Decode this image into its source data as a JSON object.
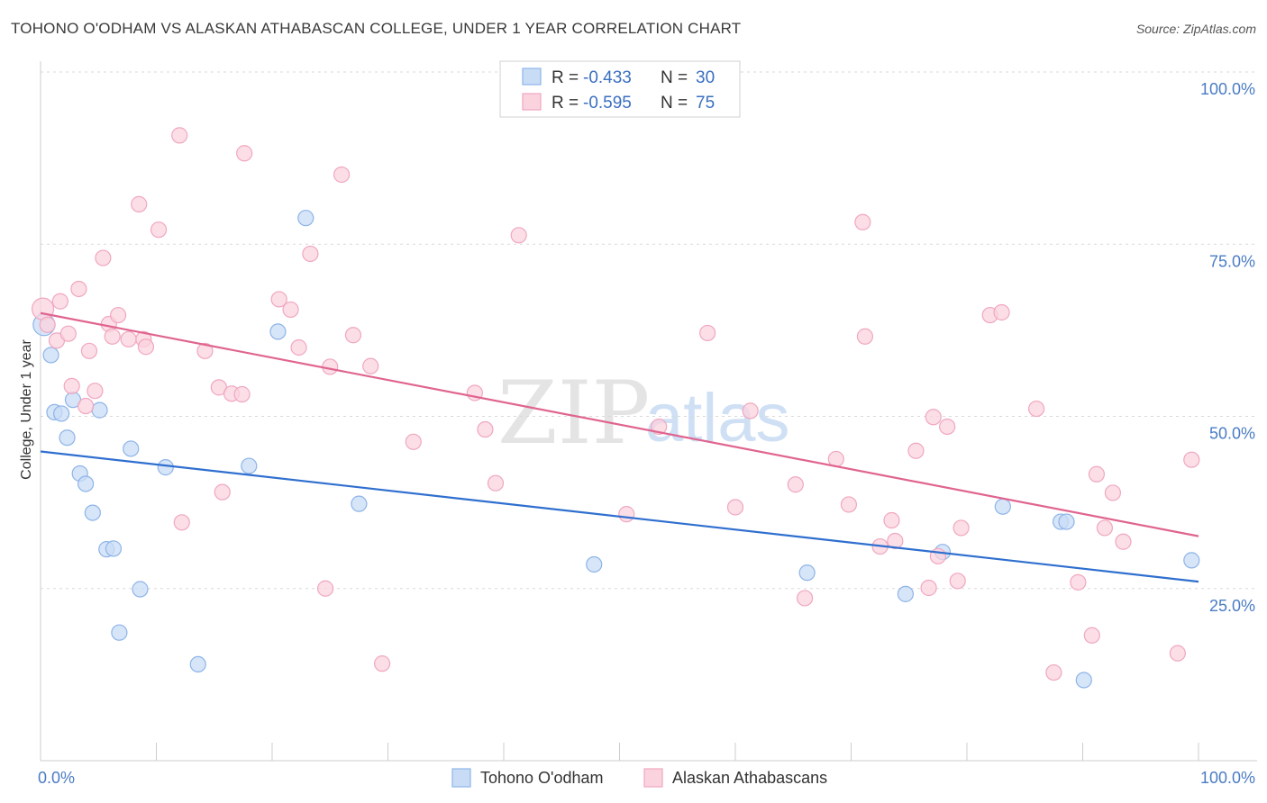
{
  "title": "TOHONO O'ODHAM VS ALASKAN ATHABASCAN COLLEGE, UNDER 1 YEAR CORRELATION CHART",
  "source": "Source: ZipAtlas.com",
  "watermark": {
    "zip": "ZIP",
    "atlas": "atlas"
  },
  "legend_top": {
    "r_label": "R =",
    "n_label": "N =",
    "rows": [
      {
        "r": "-0.433",
        "n": "30"
      },
      {
        "r": "-0.595",
        "n": "75"
      }
    ]
  },
  "chart_data": {
    "type": "scatter",
    "title": "TOHONO O'ODHAM VS ALASKAN ATHABASCAN COLLEGE, UNDER 1 YEAR CORRELATION CHART",
    "xlabel": "",
    "ylabel": "College, Under 1 year",
    "xlim": [
      0,
      100
    ],
    "ylim": [
      0,
      100
    ],
    "x_tick_labels": [
      "0.0%",
      "100.0%"
    ],
    "y_tick_labels": [
      "25.0%",
      "50.0%",
      "75.0%",
      "100.0%"
    ],
    "y_ticks": [
      25,
      50,
      75,
      100
    ],
    "grid": true,
    "legend_position": "bottom",
    "series": [
      {
        "name": "Tohono O'odham",
        "color": "#8db4e8",
        "fill": "#c9dcf5",
        "line_color": "#2f6fcf",
        "trend": {
          "x0": 0,
          "y0": 44.9,
          "x1": 100,
          "y1": 26.0
        },
        "points": [
          [
            0.3,
            63.3
          ],
          [
            0.9,
            58.9
          ],
          [
            1.2,
            50.6
          ],
          [
            1.8,
            50.4
          ],
          [
            2.3,
            46.9
          ],
          [
            2.8,
            52.4
          ],
          [
            3.4,
            41.7
          ],
          [
            3.9,
            40.2
          ],
          [
            4.5,
            36.0
          ],
          [
            5.1,
            50.9
          ],
          [
            5.7,
            30.7
          ],
          [
            6.3,
            30.8
          ],
          [
            6.8,
            18.6
          ],
          [
            7.8,
            45.3
          ],
          [
            8.6,
            24.9
          ],
          [
            10.8,
            42.6
          ],
          [
            13.6,
            14.0
          ],
          [
            18.0,
            42.8
          ],
          [
            20.5,
            62.3
          ],
          [
            22.9,
            78.8
          ],
          [
            27.5,
            37.3
          ],
          [
            47.8,
            28.5
          ],
          [
            66.2,
            27.3
          ],
          [
            74.7,
            24.2
          ],
          [
            77.9,
            30.3
          ],
          [
            83.1,
            36.9
          ],
          [
            88.1,
            34.7
          ],
          [
            88.6,
            34.7
          ],
          [
            90.1,
            11.7
          ],
          [
            99.4,
            29.1
          ]
        ]
      },
      {
        "name": "Alaskan Athabascans",
        "color": "#f0a7bf",
        "fill": "#fbd3df",
        "line_color": "#e0648f",
        "trend": {
          "x0": 0,
          "y0": 65.0,
          "x1": 100,
          "y1": 32.6
        },
        "points": [
          [
            0.2,
            65.6
          ],
          [
            0.6,
            63.3
          ],
          [
            1.4,
            61.0
          ],
          [
            1.7,
            66.7
          ],
          [
            2.4,
            62.0
          ],
          [
            2.7,
            54.4
          ],
          [
            3.3,
            68.5
          ],
          [
            3.9,
            51.5
          ],
          [
            4.2,
            59.5
          ],
          [
            4.7,
            53.7
          ],
          [
            5.4,
            73.0
          ],
          [
            5.9,
            63.4
          ],
          [
            6.2,
            61.6
          ],
          [
            6.7,
            64.7
          ],
          [
            7.6,
            61.2
          ],
          [
            8.5,
            80.8
          ],
          [
            8.9,
            61.2
          ],
          [
            9.1,
            60.1
          ],
          [
            10.2,
            77.1
          ],
          [
            12.0,
            90.8
          ],
          [
            12.2,
            34.6
          ],
          [
            14.2,
            59.5
          ],
          [
            15.4,
            54.2
          ],
          [
            15.7,
            39.0
          ],
          [
            16.5,
            53.3
          ],
          [
            17.4,
            53.2
          ],
          [
            17.6,
            88.2
          ],
          [
            20.6,
            67.0
          ],
          [
            21.6,
            65.5
          ],
          [
            22.3,
            60.0
          ],
          [
            23.3,
            73.6
          ],
          [
            24.6,
            25.0
          ],
          [
            25.0,
            57.2
          ],
          [
            26.0,
            85.1
          ],
          [
            27.0,
            61.8
          ],
          [
            28.5,
            57.3
          ],
          [
            29.5,
            14.1
          ],
          [
            32.2,
            46.3
          ],
          [
            37.5,
            53.4
          ],
          [
            38.4,
            48.1
          ],
          [
            39.3,
            40.3
          ],
          [
            41.3,
            76.3
          ],
          [
            50.6,
            35.8
          ],
          [
            53.4,
            48.5
          ],
          [
            57.6,
            62.1
          ],
          [
            60.0,
            36.8
          ],
          [
            61.3,
            50.8
          ],
          [
            65.2,
            40.1
          ],
          [
            66.0,
            23.6
          ],
          [
            68.7,
            43.8
          ],
          [
            69.8,
            37.2
          ],
          [
            71.0,
            78.2
          ],
          [
            71.2,
            61.6
          ],
          [
            72.5,
            31.1
          ],
          [
            73.5,
            34.9
          ],
          [
            73.8,
            31.9
          ],
          [
            75.6,
            45.0
          ],
          [
            76.7,
            25.1
          ],
          [
            77.1,
            49.9
          ],
          [
            77.5,
            29.7
          ],
          [
            78.3,
            48.5
          ],
          [
            79.2,
            26.1
          ],
          [
            79.5,
            33.8
          ],
          [
            82.0,
            64.7
          ],
          [
            83.0,
            65.1
          ],
          [
            86.0,
            51.1
          ],
          [
            87.5,
            12.8
          ],
          [
            89.6,
            25.9
          ],
          [
            90.8,
            18.2
          ],
          [
            91.2,
            41.6
          ],
          [
            91.9,
            33.8
          ],
          [
            92.6,
            38.9
          ],
          [
            93.5,
            31.8
          ],
          [
            98.2,
            15.6
          ],
          [
            99.4,
            43.7
          ]
        ]
      }
    ]
  }
}
